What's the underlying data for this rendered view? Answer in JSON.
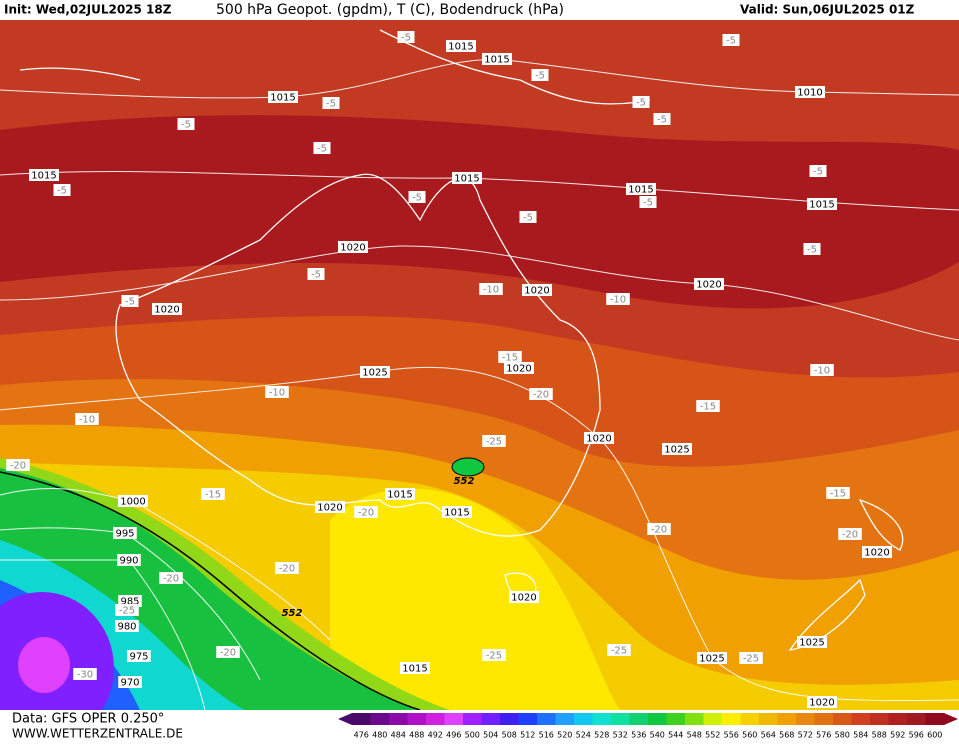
{
  "header": {
    "init": "Init: Wed,02JUL2025 18Z",
    "title": "500 hPa Geopot. (gpdm), T (C), Bodendruck (hPa)",
    "valid": "Valid: Sun,06JUL2025 01Z"
  },
  "footer": {
    "source": "Data: GFS OPER 0.250°",
    "site": "WWW.WETTERZENTRALE.DE"
  },
  "isobar_labels": [
    "1015",
    "1015",
    "1010",
    "1015",
    "1015",
    "1015",
    "1015",
    "1015",
    "1020",
    "1020",
    "1020",
    "1020",
    "1025",
    "1020",
    "1020",
    "1025",
    "1015",
    "1020",
    "1015",
    "1000",
    "995",
    "990",
    "985",
    "980",
    "975",
    "970",
    "1020",
    "1020",
    "1025",
    "1025",
    "1015",
    "1020"
  ],
  "geopotential_labels": [
    "552",
    "552"
  ],
  "temperature_labels": [
    "-5",
    "-5",
    "-5",
    "-5",
    "-5",
    "-5",
    "-5",
    "-5",
    "-5",
    "-5",
    "-5",
    "-5",
    "-5",
    "-5",
    "-5",
    "-5",
    "-10",
    "-10",
    "-10",
    "-10",
    "-10",
    "-15",
    "-15",
    "-15",
    "-15",
    "-20",
    "-20",
    "-20",
    "-20",
    "-20",
    "-20",
    "-20",
    "-20",
    "-25",
    "-25",
    "-25",
    "-25",
    "-25",
    "-30"
  ],
  "colorbar": {
    "levels": [
      476,
      480,
      484,
      488,
      492,
      496,
      500,
      504,
      508,
      512,
      516,
      520,
      524,
      528,
      532,
      536,
      540,
      544,
      548,
      552,
      556,
      560,
      564,
      568,
      572,
      576,
      580,
      584,
      588,
      592,
      596,
      600
    ],
    "colors": [
      "#4a0a6a",
      "#6a0a8a",
      "#8a0aa8",
      "#b010c8",
      "#d020e0",
      "#e040ff",
      "#a020ff",
      "#7020ff",
      "#4020f0",
      "#2040ff",
      "#2070ff",
      "#20a0ff",
      "#10c8f0",
      "#10e0d0",
      "#10e0a0",
      "#10d070",
      "#10c840",
      "#40d020",
      "#80e010",
      "#d0f000",
      "#ffee00",
      "#f8d000",
      "#f0b800",
      "#f0a000",
      "#e88810",
      "#e07010",
      "#d85818",
      "#d04020",
      "#c03020",
      "#b02020",
      "#a01820",
      "#900820"
    ]
  }
}
